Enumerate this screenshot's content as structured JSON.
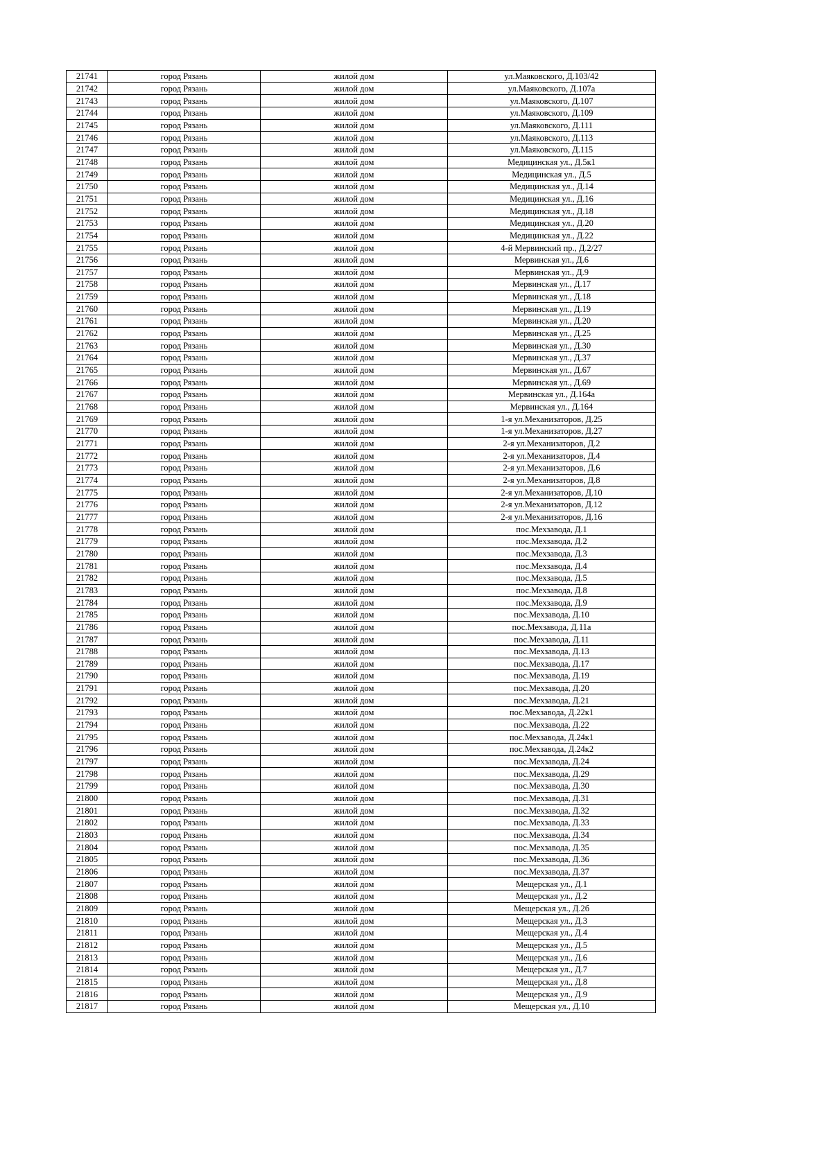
{
  "table": {
    "rows": [
      [
        "21741",
        "город Рязань",
        "жилой дом",
        "ул.Маяковского, Д.103/42"
      ],
      [
        "21742",
        "город Рязань",
        "жилой дом",
        "ул.Маяковского, Д.107а"
      ],
      [
        "21743",
        "город Рязань",
        "жилой дом",
        "ул.Маяковского, Д.107"
      ],
      [
        "21744",
        "город Рязань",
        "жилой дом",
        "ул.Маяковского, Д.109"
      ],
      [
        "21745",
        "город Рязань",
        "жилой дом",
        "ул.Маяковского, Д.111"
      ],
      [
        "21746",
        "город Рязань",
        "жилой дом",
        "ул.Маяковского, Д.113"
      ],
      [
        "21747",
        "город Рязань",
        "жилой дом",
        "ул.Маяковского, Д.115"
      ],
      [
        "21748",
        "город Рязань",
        "жилой дом",
        "Медицинская ул., Д.5к1"
      ],
      [
        "21749",
        "город Рязань",
        "жилой дом",
        "Медицинская ул., Д.5"
      ],
      [
        "21750",
        "город Рязань",
        "жилой дом",
        "Медицинская ул., Д.14"
      ],
      [
        "21751",
        "город Рязань",
        "жилой дом",
        "Медицинская ул., Д.16"
      ],
      [
        "21752",
        "город Рязань",
        "жилой дом",
        "Медицинская ул., Д.18"
      ],
      [
        "21753",
        "город Рязань",
        "жилой дом",
        "Медицинская ул., Д.20"
      ],
      [
        "21754",
        "город Рязань",
        "жилой дом",
        "Медицинская ул., Д.22"
      ],
      [
        "21755",
        "город Рязань",
        "жилой дом",
        "4-й Мервинский пр., Д.2/27"
      ],
      [
        "21756",
        "город Рязань",
        "жилой дом",
        "Мервинская ул., Д.6"
      ],
      [
        "21757",
        "город Рязань",
        "жилой дом",
        "Мервинская ул., Д.9"
      ],
      [
        "21758",
        "город Рязань",
        "жилой дом",
        "Мервинская ул., Д.17"
      ],
      [
        "21759",
        "город Рязань",
        "жилой дом",
        "Мервинская ул., Д.18"
      ],
      [
        "21760",
        "город Рязань",
        "жилой дом",
        "Мервинская ул., Д.19"
      ],
      [
        "21761",
        "город Рязань",
        "жилой дом",
        "Мервинская ул., Д.20"
      ],
      [
        "21762",
        "город Рязань",
        "жилой дом",
        "Мервинская ул., Д.25"
      ],
      [
        "21763",
        "город Рязань",
        "жилой дом",
        "Мервинская ул., Д.30"
      ],
      [
        "21764",
        "город Рязань",
        "жилой дом",
        "Мервинская ул., Д.37"
      ],
      [
        "21765",
        "город Рязань",
        "жилой дом",
        "Мервинская ул., Д.67"
      ],
      [
        "21766",
        "город Рязань",
        "жилой дом",
        "Мервинская ул., Д.69"
      ],
      [
        "21767",
        "город Рязань",
        "жилой дом",
        "Мервинская ул., Д.164а"
      ],
      [
        "21768",
        "город Рязань",
        "жилой дом",
        "Мервинская ул., Д.164"
      ],
      [
        "21769",
        "город Рязань",
        "жилой дом",
        "1-я ул.Механизаторов, Д.25"
      ],
      [
        "21770",
        "город Рязань",
        "жилой дом",
        "1-я ул.Механизаторов, Д.27"
      ],
      [
        "21771",
        "город Рязань",
        "жилой дом",
        "2-я ул.Механизаторов, Д.2"
      ],
      [
        "21772",
        "город Рязань",
        "жилой дом",
        "2-я ул.Механизаторов, Д.4"
      ],
      [
        "21773",
        "город Рязань",
        "жилой дом",
        "2-я ул.Механизаторов, Д.6"
      ],
      [
        "21774",
        "город Рязань",
        "жилой дом",
        "2-я ул.Механизаторов, Д.8"
      ],
      [
        "21775",
        "город Рязань",
        "жилой дом",
        "2-я ул.Механизаторов, Д.10"
      ],
      [
        "21776",
        "город Рязань",
        "жилой дом",
        "2-я ул.Механизаторов, Д.12"
      ],
      [
        "21777",
        "город Рязань",
        "жилой дом",
        "2-я ул.Механизаторов, Д.16"
      ],
      [
        "21778",
        "город Рязань",
        "жилой дом",
        "пос.Мехзавода, Д.1"
      ],
      [
        "21779",
        "город Рязань",
        "жилой дом",
        "пос.Мехзавода, Д.2"
      ],
      [
        "21780",
        "город Рязань",
        "жилой дом",
        "пос.Мехзавода, Д.3"
      ],
      [
        "21781",
        "город Рязань",
        "жилой дом",
        "пос.Мехзавода, Д.4"
      ],
      [
        "21782",
        "город Рязань",
        "жилой дом",
        "пос.Мехзавода, Д.5"
      ],
      [
        "21783",
        "город Рязань",
        "жилой дом",
        "пос.Мехзавода, Д.8"
      ],
      [
        "21784",
        "город Рязань",
        "жилой дом",
        "пос.Мехзавода, Д.9"
      ],
      [
        "21785",
        "город Рязань",
        "жилой дом",
        "пос.Мехзавода, Д.10"
      ],
      [
        "21786",
        "город Рязань",
        "жилой дом",
        "пос.Мехзавода, Д.11а"
      ],
      [
        "21787",
        "город Рязань",
        "жилой дом",
        "пос.Мехзавода, Д.11"
      ],
      [
        "21788",
        "город Рязань",
        "жилой дом",
        "пос.Мехзавода, Д.13"
      ],
      [
        "21789",
        "город Рязань",
        "жилой дом",
        "пос.Мехзавода, Д.17"
      ],
      [
        "21790",
        "город Рязань",
        "жилой дом",
        "пос.Мехзавода, Д.19"
      ],
      [
        "21791",
        "город Рязань",
        "жилой дом",
        "пос.Мехзавода, Д.20"
      ],
      [
        "21792",
        "город Рязань",
        "жилой дом",
        "пос.Мехзавода, Д.21"
      ],
      [
        "21793",
        "город Рязань",
        "жилой дом",
        "пос.Мехзавода, Д.22к1"
      ],
      [
        "21794",
        "город Рязань",
        "жилой дом",
        "пос.Мехзавода, Д.22"
      ],
      [
        "21795",
        "город Рязань",
        "жилой дом",
        "пос.Мехзавода, Д.24к1"
      ],
      [
        "21796",
        "город Рязань",
        "жилой дом",
        "пос.Мехзавода, Д.24к2"
      ],
      [
        "21797",
        "город Рязань",
        "жилой дом",
        "пос.Мехзавода, Д.24"
      ],
      [
        "21798",
        "город Рязань",
        "жилой дом",
        "пос.Мехзавода, Д.29"
      ],
      [
        "21799",
        "город Рязань",
        "жилой дом",
        "пос.Мехзавода, Д.30"
      ],
      [
        "21800",
        "город Рязань",
        "жилой дом",
        "пос.Мехзавода, Д.31"
      ],
      [
        "21801",
        "город Рязань",
        "жилой дом",
        "пос.Мехзавода, Д.32"
      ],
      [
        "21802",
        "город Рязань",
        "жилой дом",
        "пос.Мехзавода, Д.33"
      ],
      [
        "21803",
        "город Рязань",
        "жилой дом",
        "пос.Мехзавода, Д.34"
      ],
      [
        "21804",
        "город Рязань",
        "жилой дом",
        "пос.Мехзавода, Д.35"
      ],
      [
        "21805",
        "город Рязань",
        "жилой дом",
        "пос.Мехзавода, Д.36"
      ],
      [
        "21806",
        "город Рязань",
        "жилой дом",
        "пос.Мехзавода, Д.37"
      ],
      [
        "21807",
        "город Рязань",
        "жилой дом",
        "Мещерская ул., Д.1"
      ],
      [
        "21808",
        "город Рязань",
        "жилой дом",
        "Мещерская ул., Д.2"
      ],
      [
        "21809",
        "город Рязань",
        "жилой дом",
        "Мещерская ул., Д.2б"
      ],
      [
        "21810",
        "город Рязань",
        "жилой дом",
        "Мещерская ул., Д.3"
      ],
      [
        "21811",
        "город Рязань",
        "жилой дом",
        "Мещерская ул., Д.4"
      ],
      [
        "21812",
        "город Рязань",
        "жилой дом",
        "Мещерская ул., Д.5"
      ],
      [
        "21813",
        "город Рязань",
        "жилой дом",
        "Мещерская ул., Д.6"
      ],
      [
        "21814",
        "город Рязань",
        "жилой дом",
        "Мещерская ул., Д.7"
      ],
      [
        "21815",
        "город Рязань",
        "жилой дом",
        "Мещерская ул., Д.8"
      ],
      [
        "21816",
        "город Рязань",
        "жилой дом",
        "Мещерская ул., Д.9"
      ],
      [
        "21817",
        "город Рязань",
        "жилой дом",
        "Мещерская ул., Д.10"
      ]
    ]
  }
}
